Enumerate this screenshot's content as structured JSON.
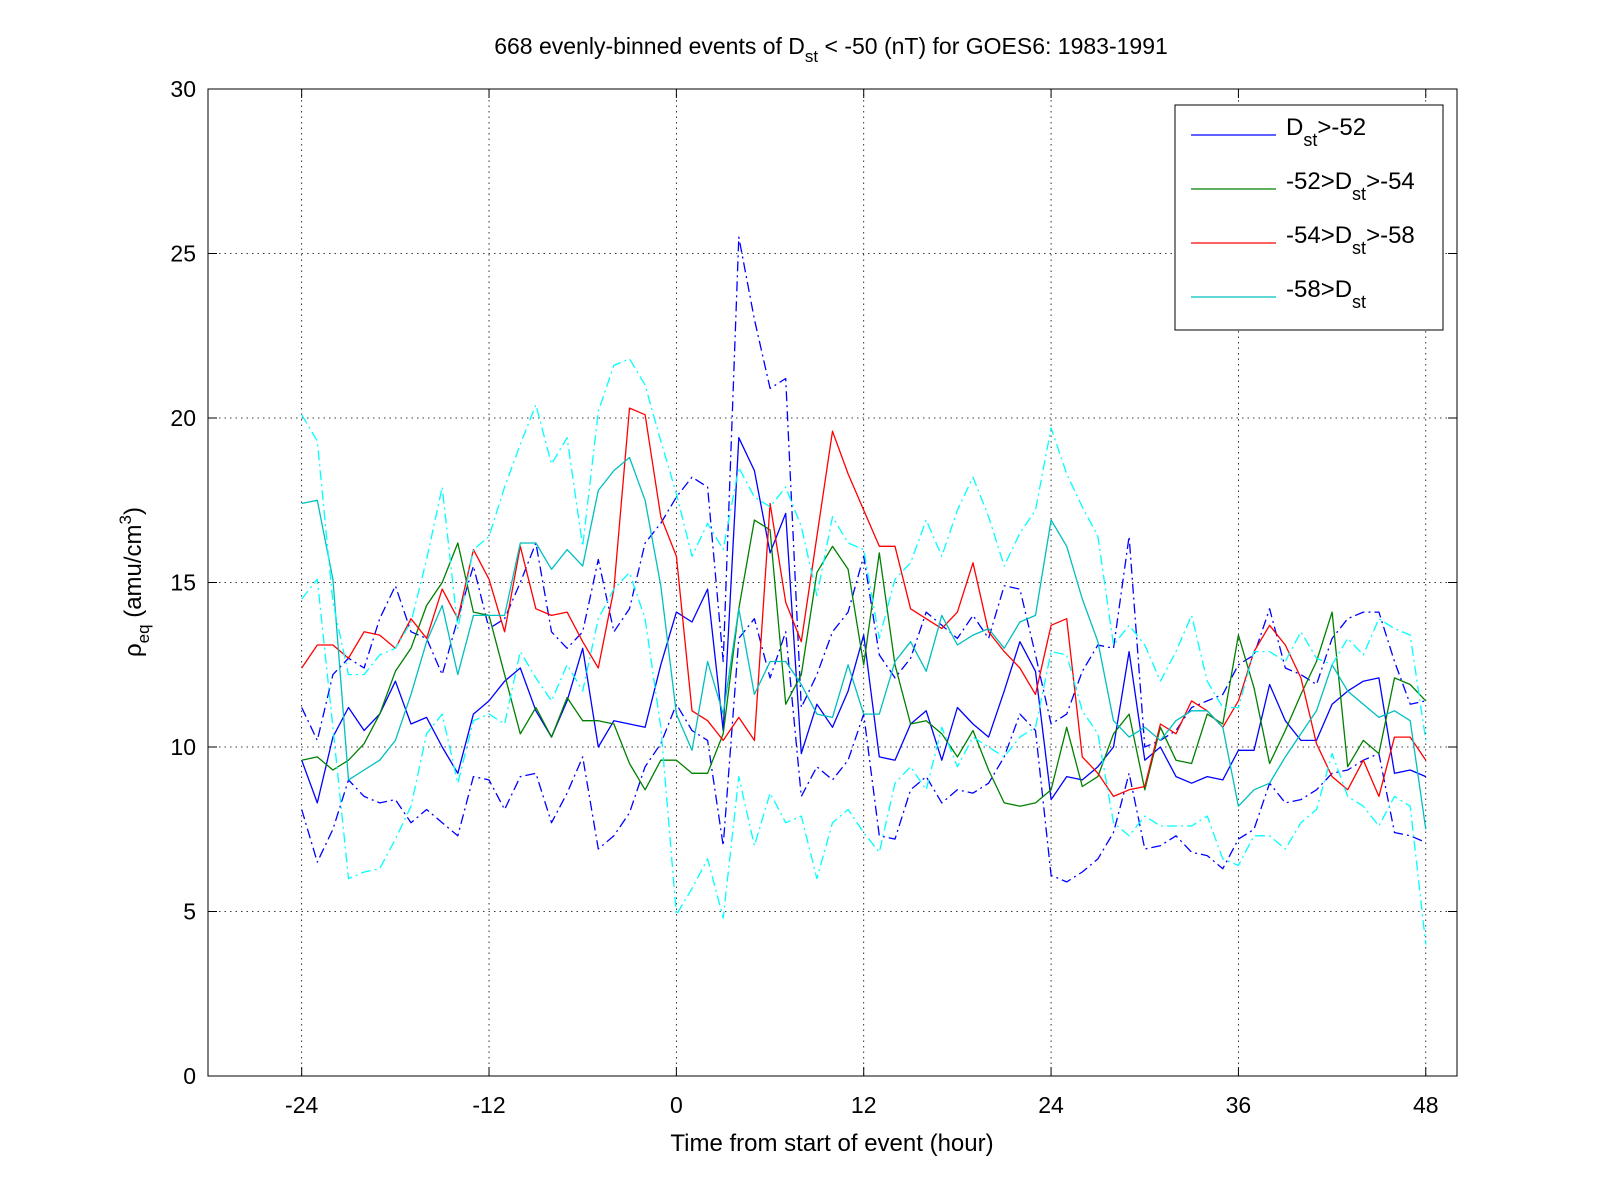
{
  "chart_data": {
    "type": "line",
    "title": {
      "pre": "668 evenly-binned events of D",
      "sub": "st",
      "post": " < -50 (nT) for GOES6: 1983-1991"
    },
    "xlabel": "Time from start of event (hour)",
    "ylabel": {
      "rho": "ρ",
      "sub": "eq",
      "mid": " (amu/cm",
      "sup": "3",
      "end": ")"
    },
    "xlim": [
      -30,
      50
    ],
    "ylim": [
      0,
      30
    ],
    "x_ticks": [
      -24,
      -12,
      0,
      12,
      24,
      36,
      48
    ],
    "y_ticks": [
      0,
      5,
      10,
      15,
      20,
      25,
      30
    ],
    "grid": true,
    "legend_position": "top-right",
    "legend": [
      {
        "pre": "D",
        "sub": "st",
        "post": ">-52",
        "color": "#0000ff"
      },
      {
        "pre": "-52>D",
        "sub": "st",
        "post": ">-54",
        "color": "#008000"
      },
      {
        "pre": "-54>D",
        "sub": "st",
        "post": ">-58",
        "color": "#ff0000"
      },
      {
        "pre": "-58>D",
        "sub": "st",
        "post": "",
        "color": "#00bfbf"
      }
    ],
    "x": [
      -24,
      -23,
      -22,
      -21,
      -20,
      -19,
      -18,
      -17,
      -16,
      -15,
      -14,
      -13,
      -12,
      -11,
      -10,
      -9,
      -8,
      -7,
      -6,
      -5,
      -4,
      -3,
      -2,
      -1,
      0,
      1,
      2,
      3,
      4,
      5,
      6,
      7,
      8,
      9,
      10,
      11,
      12,
      13,
      14,
      15,
      16,
      17,
      18,
      19,
      20,
      21,
      22,
      23,
      24,
      25,
      26,
      27,
      28,
      29,
      30,
      31,
      32,
      33,
      34,
      35,
      36,
      37,
      38,
      39,
      40,
      41,
      42,
      43,
      44,
      45,
      46,
      47,
      48
    ],
    "series": [
      {
        "color": "#0000ff",
        "style": "solid",
        "values": [
          9.6,
          8.3,
          10.3,
          11.2,
          10.5,
          11.0,
          12.0,
          10.7,
          10.9,
          10.0,
          9.2,
          11.0,
          11.4,
          12.0,
          12.4,
          11.1,
          10.3,
          11.4,
          13.0,
          10.0,
          10.8,
          10.7,
          10.6,
          12.5,
          14.1,
          13.8,
          14.8,
          10.5,
          19.4,
          18.4,
          15.9,
          17.1,
          9.8,
          11.3,
          10.6,
          11.7,
          13.4,
          9.7,
          9.6,
          10.7,
          11.1,
          9.6,
          11.2,
          10.7,
          10.3,
          11.7,
          13.2,
          12.3,
          8.4,
          9.1,
          9.0,
          9.4,
          10.0,
          12.9,
          9.6,
          10.0,
          9.1,
          8.9,
          9.1,
          9.0,
          9.9,
          9.9,
          11.9,
          10.8,
          10.2,
          10.2,
          11.3,
          11.7,
          12.0,
          12.1,
          9.2,
          9.3,
          9.1
        ]
      },
      {
        "color": "#0000ff",
        "style": "dashdot",
        "values": [
          11.2,
          10.2,
          12.2,
          12.7,
          12.4,
          13.9,
          14.9,
          13.5,
          13.3,
          12.2,
          13.9,
          15.5,
          13.6,
          13.9,
          15.0,
          16.2,
          13.5,
          13.0,
          13.5,
          15.7,
          13.5,
          14.2,
          16.2,
          16.8,
          17.6,
          18.2,
          17.9,
          12.6,
          25.5,
          23.0,
          20.9,
          21.2,
          11.2,
          12.2,
          13.5,
          14.1,
          15.8,
          12.8,
          12.1,
          12.7,
          14.1,
          13.7,
          13.3,
          14.0,
          13.3,
          14.9,
          14.8,
          12.8,
          10.7,
          11.0,
          12.3,
          13.1,
          13.0,
          16.4,
          10.0,
          10.2,
          10.5,
          11.2,
          11.4,
          11.6,
          12.5,
          12.8,
          14.2,
          12.4,
          12.2,
          11.9,
          13.3,
          13.9,
          14.1,
          14.1,
          12.6,
          11.3,
          11.4
        ]
      },
      {
        "color": "#0000ff",
        "style": "dashdot",
        "values": [
          8.1,
          6.5,
          7.5,
          9.0,
          8.5,
          8.3,
          8.4,
          7.7,
          8.1,
          7.7,
          7.3,
          9.1,
          9.0,
          8.1,
          9.1,
          9.2,
          7.7,
          8.6,
          9.7,
          6.9,
          7.3,
          8.0,
          9.4,
          10.1,
          11.3,
          10.5,
          10.2,
          7.0,
          13.3,
          13.9,
          12.1,
          13.5,
          8.5,
          9.4,
          9.0,
          9.6,
          11.0,
          7.3,
          7.2,
          8.7,
          9.1,
          8.3,
          8.7,
          8.6,
          8.9,
          9.7,
          11.0,
          10.5,
          6.1,
          5.9,
          6.2,
          6.6,
          7.4,
          9.2,
          6.9,
          7.0,
          7.3,
          6.8,
          6.7,
          6.3,
          7.2,
          7.5,
          8.9,
          8.3,
          8.4,
          8.7,
          9.2,
          9.3,
          9.6,
          9.8,
          7.4,
          7.3,
          7.1
        ]
      },
      {
        "color": "#008000",
        "style": "solid",
        "values": [
          9.6,
          9.7,
          9.3,
          9.6,
          10.1,
          11.0,
          12.3,
          13.0,
          14.3,
          15.0,
          16.2,
          14.1,
          14.0,
          12.2,
          10.4,
          11.2,
          10.3,
          11.5,
          10.8,
          10.8,
          10.7,
          9.5,
          8.7,
          9.6,
          9.6,
          9.2,
          9.2,
          10.4,
          14.2,
          16.9,
          16.6,
          11.3,
          12.2,
          15.3,
          16.1,
          15.4,
          12.5,
          15.9,
          12.5,
          10.7,
          10.8,
          10.4,
          9.7,
          10.5,
          9.3,
          8.3,
          8.2,
          8.3,
          8.7,
          10.6,
          8.8,
          9.1,
          10.4,
          11.0,
          8.7,
          10.6,
          9.6,
          9.5,
          11.0,
          10.7,
          13.4,
          11.8,
          9.5,
          10.5,
          11.6,
          12.6,
          14.1,
          9.4,
          10.2,
          9.8,
          12.1,
          11.9,
          11.4
        ]
      },
      {
        "color": "#ff0000",
        "style": "solid",
        "values": [
          12.4,
          13.1,
          13.1,
          12.7,
          13.5,
          13.4,
          13.0,
          13.9,
          13.3,
          14.8,
          13.9,
          16.0,
          15.1,
          13.5,
          16.1,
          14.2,
          14.0,
          14.1,
          13.2,
          12.4,
          14.8,
          20.3,
          20.1,
          17.0,
          15.8,
          11.1,
          10.8,
          10.2,
          10.9,
          10.2,
          17.4,
          14.4,
          13.2,
          16.4,
          19.6,
          18.3,
          17.2,
          16.1,
          16.1,
          14.2,
          13.9,
          13.6,
          14.1,
          15.6,
          13.5,
          12.9,
          12.4,
          11.6,
          13.7,
          13.9,
          9.7,
          9.2,
          8.5,
          8.7,
          8.8,
          10.7,
          10.4,
          11.4,
          11.1,
          10.6,
          11.4,
          12.9,
          13.7,
          13.1,
          12.1,
          10.1,
          9.1,
          8.7,
          9.6,
          8.5,
          10.3,
          10.3,
          9.6
        ]
      },
      {
        "color": "#00bfbf",
        "style": "solid",
        "values": [
          17.4,
          17.5,
          15.1,
          9.0,
          9.3,
          9.6,
          10.2,
          11.6,
          13.2,
          14.3,
          12.2,
          14.0,
          14.0,
          14.0,
          16.2,
          16.2,
          15.4,
          16.0,
          15.5,
          17.8,
          18.4,
          18.8,
          17.5,
          14.9,
          11.0,
          9.9,
          12.6,
          11.0,
          14.2,
          11.6,
          12.6,
          12.6,
          11.9,
          11.0,
          10.9,
          12.5,
          11.0,
          11.0,
          12.6,
          13.2,
          12.3,
          14.0,
          13.1,
          13.4,
          13.6,
          13.0,
          13.8,
          14.0,
          16.9,
          16.1,
          14.5,
          13.2,
          10.8,
          10.3,
          10.6,
          10.2,
          10.8,
          11.1,
          11.1,
          10.6,
          8.2,
          8.7,
          8.9,
          9.7,
          10.4,
          11.1,
          12.5,
          11.7,
          11.3,
          10.9,
          11.1,
          10.8,
          7.5
        ]
      },
      {
        "color": "#00ffff",
        "style": "dashdot",
        "values": [
          20.1,
          19.3,
          14.4,
          12.2,
          12.2,
          12.8,
          13.0,
          13.8,
          15.7,
          17.9,
          13.6,
          16.0,
          16.4,
          17.9,
          19.2,
          20.4,
          18.6,
          19.4,
          16.1,
          20.2,
          21.6,
          21.8,
          21.0,
          19.3,
          17.7,
          15.8,
          16.8,
          16.0,
          18.5,
          17.6,
          17.3,
          17.9,
          16.7,
          14.6,
          17.0,
          16.2,
          16.0,
          13.3,
          15.1,
          15.6,
          16.9,
          15.8,
          17.2,
          18.2,
          17.0,
          15.5,
          16.5,
          17.2,
          19.7,
          18.3,
          17.3,
          16.4,
          13.1,
          13.7,
          13.1,
          12.0,
          12.9,
          14.0,
          12.0,
          11.2,
          11.2,
          12.9,
          12.9,
          12.6,
          13.5,
          12.7,
          12.5,
          13.3,
          12.8,
          13.9,
          13.6,
          13.4,
          10.2
        ]
      },
      {
        "color": "#00ffff",
        "style": "dashdot",
        "values": [
          14.5,
          15.1,
          10.6,
          6.0,
          6.2,
          6.3,
          7.2,
          8.2,
          10.4,
          11.0,
          8.9,
          10.8,
          11.0,
          10.7,
          12.9,
          12.1,
          11.4,
          12.5,
          11.7,
          13.9,
          14.8,
          15.3,
          13.9,
          10.6,
          4.9,
          5.7,
          6.6,
          4.8,
          9.1,
          7.0,
          8.6,
          7.7,
          7.9,
          6.0,
          7.7,
          8.1,
          7.4,
          6.8,
          8.9,
          9.4,
          8.7,
          10.6,
          9.4,
          10.3,
          10.0,
          9.7,
          10.3,
          10.6,
          12.9,
          12.8,
          11.1,
          10.4,
          7.7,
          7.3,
          7.9,
          7.6,
          7.6,
          7.6,
          7.9,
          6.6,
          6.4,
          7.3,
          7.3,
          6.9,
          7.7,
          8.1,
          9.8,
          8.5,
          8.2,
          7.6,
          8.5,
          8.2,
          4.0
        ]
      }
    ]
  }
}
